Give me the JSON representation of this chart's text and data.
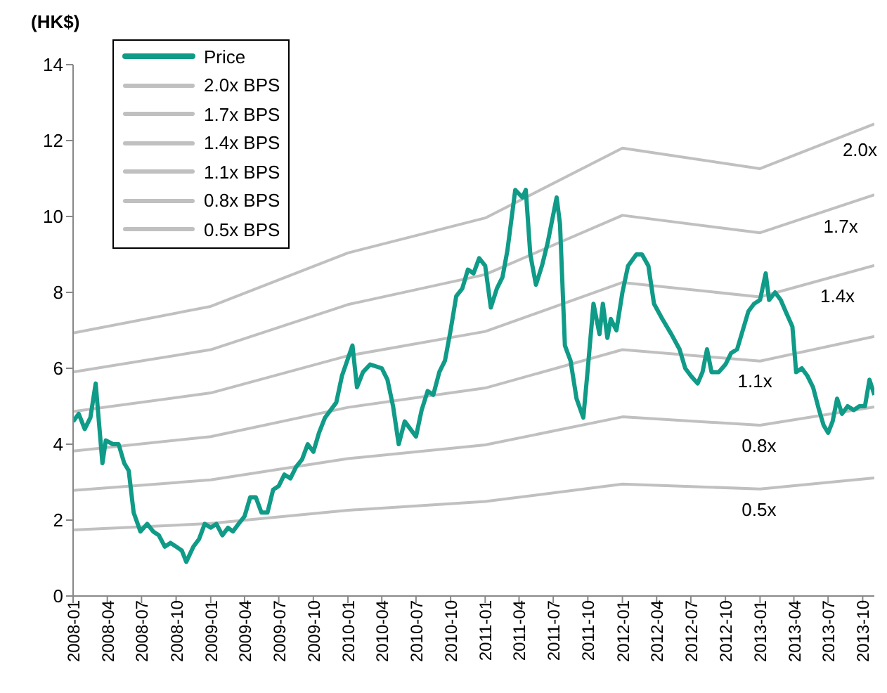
{
  "chart_data": {
    "type": "line",
    "ylabel": "(HK$)",
    "xlim": [
      "2008-01",
      "2013-11"
    ],
    "xticks": [
      "2008-01",
      "2008-04",
      "2008-07",
      "2008-10",
      "2009-01",
      "2009-04",
      "2009-07",
      "2009-10",
      "2010-01",
      "2010-04",
      "2010-07",
      "2010-10",
      "2011-01",
      "2011-04",
      "2011-07",
      "2011-10",
      "2012-01",
      "2012-04",
      "2012-07",
      "2012-10",
      "2013-01",
      "2013-04",
      "2013-07",
      "2013-10"
    ],
    "ylim": [
      0,
      14
    ],
    "yticks": [
      0,
      2,
      4,
      6,
      8,
      10,
      12,
      14
    ],
    "grid": false,
    "legend": "top left",
    "series": [
      {
        "name": "Price",
        "color": "#0f9b87",
        "x": [
          "2008-01-01",
          "2008-01-16",
          "2008-02-01",
          "2008-02-16",
          "2008-03-01",
          "2008-03-19",
          "2008-03-28",
          "2008-04-16",
          "2008-05-01",
          "2008-05-16",
          "2008-05-28",
          "2008-06-10",
          "2008-06-28",
          "2008-07-16",
          "2008-08-01",
          "2008-08-16",
          "2008-09-01",
          "2008-09-16",
          "2008-10-01",
          "2008-10-16",
          "2008-10-28",
          "2008-11-16",
          "2008-12-01",
          "2008-12-16",
          "2009-01-01",
          "2009-01-16",
          "2009-02-01",
          "2009-02-16",
          "2009-03-01",
          "2009-03-16",
          "2009-04-01",
          "2009-04-16",
          "2009-05-01",
          "2009-05-16",
          "2009-06-01",
          "2009-06-16",
          "2009-07-01",
          "2009-07-16",
          "2009-08-01",
          "2009-08-16",
          "2009-09-01",
          "2009-09-16",
          "2009-10-01",
          "2009-10-16",
          "2009-11-01",
          "2009-12-01",
          "2009-12-16",
          "2010-01-13",
          "2010-01-25",
          "2010-02-10",
          "2010-03-01",
          "2010-04-01",
          "2010-04-16",
          "2010-05-01",
          "2010-05-16",
          "2010-06-01",
          "2010-06-16",
          "2010-07-01",
          "2010-07-16",
          "2010-08-01",
          "2010-08-16",
          "2010-09-01",
          "2010-09-16",
          "2010-10-01",
          "2010-10-16",
          "2010-11-01",
          "2010-11-16",
          "2010-12-01",
          "2010-12-16",
          "2011-01-01",
          "2011-01-16",
          "2011-02-01",
          "2011-02-16",
          "2011-03-01",
          "2011-03-22",
          "2011-04-10",
          "2011-04-19",
          "2011-05-01",
          "2011-05-16",
          "2011-06-01",
          "2011-06-16",
          "2011-07-10",
          "2011-07-19",
          "2011-08-01",
          "2011-08-16",
          "2011-09-01",
          "2011-09-19",
          "2011-10-01",
          "2011-10-16",
          "2011-11-01",
          "2011-11-10",
          "2011-11-22",
          "2011-12-01",
          "2011-12-16",
          "2012-01-01",
          "2012-01-16",
          "2012-02-07",
          "2012-02-22",
          "2012-03-10",
          "2012-03-25",
          "2012-04-16",
          "2012-05-10",
          "2012-06-01",
          "2012-06-16",
          "2012-07-01",
          "2012-07-19",
          "2012-08-01",
          "2012-08-13",
          "2012-08-25",
          "2012-09-13",
          "2012-10-01",
          "2012-10-16",
          "2012-11-01",
          "2012-11-16",
          "2012-12-01",
          "2012-12-16",
          "2013-01-01",
          "2013-01-16",
          "2013-01-25",
          "2013-02-10",
          "2013-02-25",
          "2013-03-10",
          "2013-03-28",
          "2013-04-07",
          "2013-04-22",
          "2013-05-07",
          "2013-05-22",
          "2013-06-07",
          "2013-06-19",
          "2013-07-01",
          "2013-07-13",
          "2013-07-25",
          "2013-08-07",
          "2013-08-22",
          "2013-09-07",
          "2013-09-22",
          "2013-10-07",
          "2013-10-19",
          "2013-11-01"
        ],
        "values": [
          4.6,
          4.8,
          4.4,
          4.7,
          5.6,
          3.5,
          4.1,
          4.0,
          4.0,
          3.5,
          3.3,
          2.2,
          1.7,
          1.9,
          1.7,
          1.6,
          1.3,
          1.4,
          1.3,
          1.2,
          0.9,
          1.3,
          1.5,
          1.9,
          1.8,
          1.9,
          1.6,
          1.8,
          1.7,
          1.9,
          2.1,
          2.6,
          2.6,
          2.2,
          2.2,
          2.8,
          2.9,
          3.2,
          3.1,
          3.4,
          3.6,
          4.0,
          3.8,
          4.3,
          4.7,
          5.1,
          5.8,
          6.6,
          5.5,
          5.9,
          6.1,
          6.0,
          5.7,
          5.0,
          4.0,
          4.6,
          4.4,
          4.2,
          4.9,
          5.4,
          5.3,
          5.9,
          6.2,
          7.0,
          7.9,
          8.1,
          8.6,
          8.5,
          8.9,
          8.7,
          7.6,
          8.1,
          8.4,
          9.1,
          10.7,
          10.5,
          10.7,
          9.0,
          8.2,
          8.7,
          9.3,
          10.5,
          9.8,
          6.6,
          6.2,
          5.2,
          4.7,
          6.0,
          7.7,
          6.9,
          7.7,
          6.8,
          7.3,
          7.0,
          8.0,
          8.7,
          9.0,
          9.0,
          8.7,
          7.7,
          7.3,
          6.9,
          6.5,
          6.0,
          5.8,
          5.6,
          5.9,
          6.5,
          5.9,
          5.9,
          6.1,
          6.4,
          6.5,
          7.0,
          7.5,
          7.7,
          7.8,
          8.5,
          7.8,
          8.0,
          7.8,
          7.5,
          7.1,
          5.9,
          6.0,
          5.8,
          5.5,
          4.9,
          4.5,
          4.3,
          4.6,
          5.2,
          4.8,
          5.0,
          4.9,
          5.0,
          5.0,
          5.7,
          5.3
        ]
      },
      {
        "name": "2.0x BPS",
        "color": "#c0c0c0",
        "x": [
          "2008-01-01",
          "2009-01-01",
          "2010-01-01",
          "2011-01-01",
          "2012-01-01",
          "2013-01-01",
          "2013-11-01"
        ],
        "values": [
          6.93,
          7.63,
          9.04,
          9.96,
          11.8,
          11.26,
          12.44
        ]
      },
      {
        "name": "1.7x BPS",
        "color": "#c0c0c0",
        "x": [
          "2008-01-01",
          "2009-01-01",
          "2010-01-01",
          "2011-01-01",
          "2012-01-01",
          "2013-01-01",
          "2013-11-01"
        ],
        "values": [
          5.9,
          6.49,
          7.68,
          8.47,
          10.03,
          9.57,
          10.57
        ]
      },
      {
        "name": "1.4x BPS",
        "color": "#c0c0c0",
        "x": [
          "2008-01-01",
          "2009-01-01",
          "2010-01-01",
          "2011-01-01",
          "2012-01-01",
          "2013-01-01",
          "2013-11-01"
        ],
        "values": [
          4.86,
          5.35,
          6.33,
          6.97,
          8.26,
          7.88,
          8.71
        ]
      },
      {
        "name": "1.1x BPS",
        "color": "#c0c0c0",
        "x": [
          "2008-01-01",
          "2009-01-01",
          "2010-01-01",
          "2011-01-01",
          "2012-01-01",
          "2013-01-01",
          "2013-11-01"
        ],
        "values": [
          3.82,
          4.2,
          4.97,
          5.48,
          6.49,
          6.19,
          6.84
        ]
      },
      {
        "name": "0.8x BPS",
        "color": "#c0c0c0",
        "x": [
          "2008-01-01",
          "2009-01-01",
          "2010-01-01",
          "2011-01-01",
          "2012-01-01",
          "2013-01-01",
          "2013-11-01"
        ],
        "values": [
          2.78,
          3.06,
          3.62,
          3.98,
          4.72,
          4.5,
          4.98
        ]
      },
      {
        "name": "0.5x BPS",
        "color": "#c0c0c0",
        "x": [
          "2008-01-01",
          "2009-01-01",
          "2010-01-01",
          "2011-01-01",
          "2012-01-01",
          "2013-01-01",
          "2013-11-01"
        ],
        "values": [
          1.74,
          1.91,
          2.26,
          2.49,
          2.95,
          2.82,
          3.11
        ]
      }
    ],
    "annotations": [
      "2.0x",
      "1.7x",
      "1.4x",
      "1.1x",
      "0.8x",
      "0.5x"
    ]
  }
}
